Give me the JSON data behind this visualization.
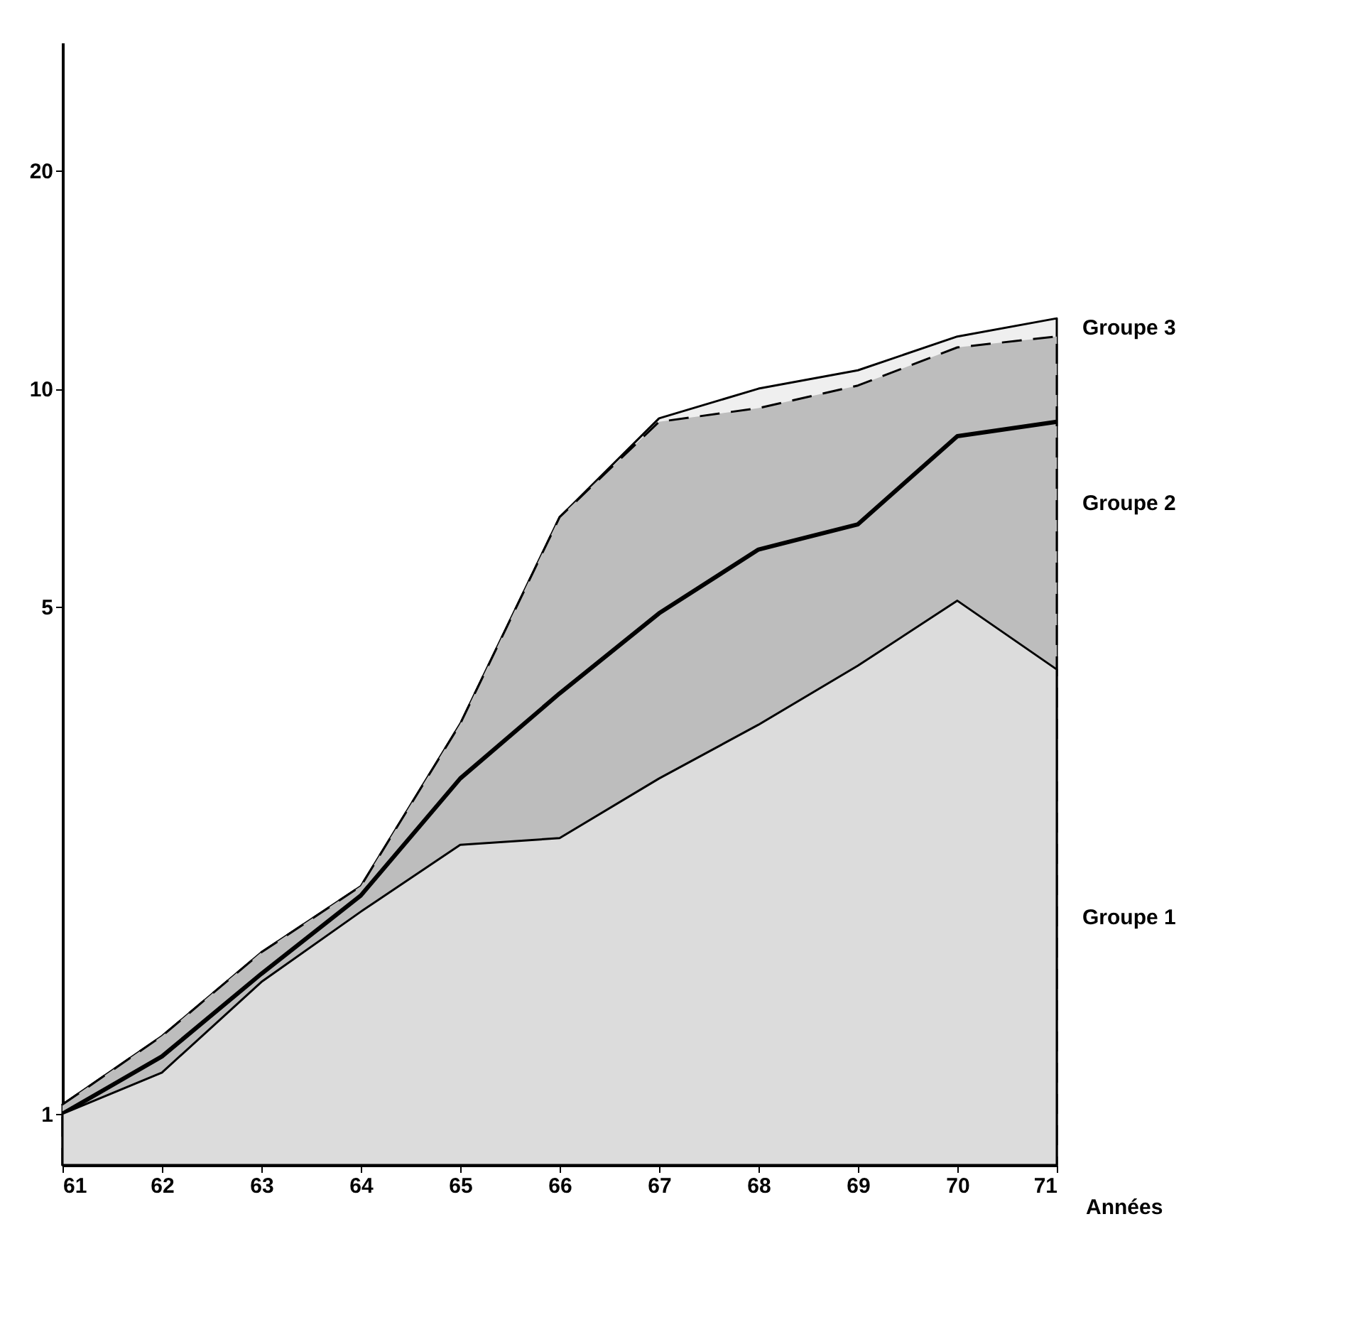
{
  "chart_data": {
    "type": "area",
    "xlabel": "Années",
    "x": [
      61,
      62,
      63,
      64,
      65,
      66,
      67,
      68,
      69,
      70,
      71
    ],
    "series": [
      {
        "name": "Groupe 3",
        "type": "area",
        "color": "#efefef",
        "values": [
          1.03,
          1.28,
          1.67,
          2.06,
          3.45,
          6.65,
          9.1,
          10,
          10.6,
          11.8,
          12.5
        ]
      },
      {
        "name": "Groupe 2",
        "type": "area",
        "color": "#bdbdbd",
        "line_style": "dashed",
        "values": [
          1.03,
          1.28,
          1.67,
          2.06,
          3.45,
          6.65,
          9.0,
          9.4,
          10.1,
          11.4,
          11.8
        ]
      },
      {
        "type": "line",
        "color": "#000000",
        "values": [
          1.0,
          1.2,
          1.56,
          2.0,
          2.9,
          3.8,
          4.9,
          6.0,
          6.5,
          8.6,
          9.0
        ]
      },
      {
        "name": "Groupe 1",
        "type": "area",
        "color": "#dcdcdc",
        "values": [
          1.0,
          1.14,
          1.52,
          1.9,
          2.35,
          2.4,
          2.9,
          3.44,
          4.15,
          5.1,
          4.1
        ]
      }
    ],
    "xlim": [
      61,
      71
    ],
    "xticks": [
      61,
      62,
      63,
      64,
      65,
      66,
      67,
      68,
      69,
      70,
      71
    ],
    "ylim": [
      0.85,
      30
    ],
    "yticks": [
      1,
      5,
      10,
      20
    ],
    "log": true,
    "grid": false
  }
}
